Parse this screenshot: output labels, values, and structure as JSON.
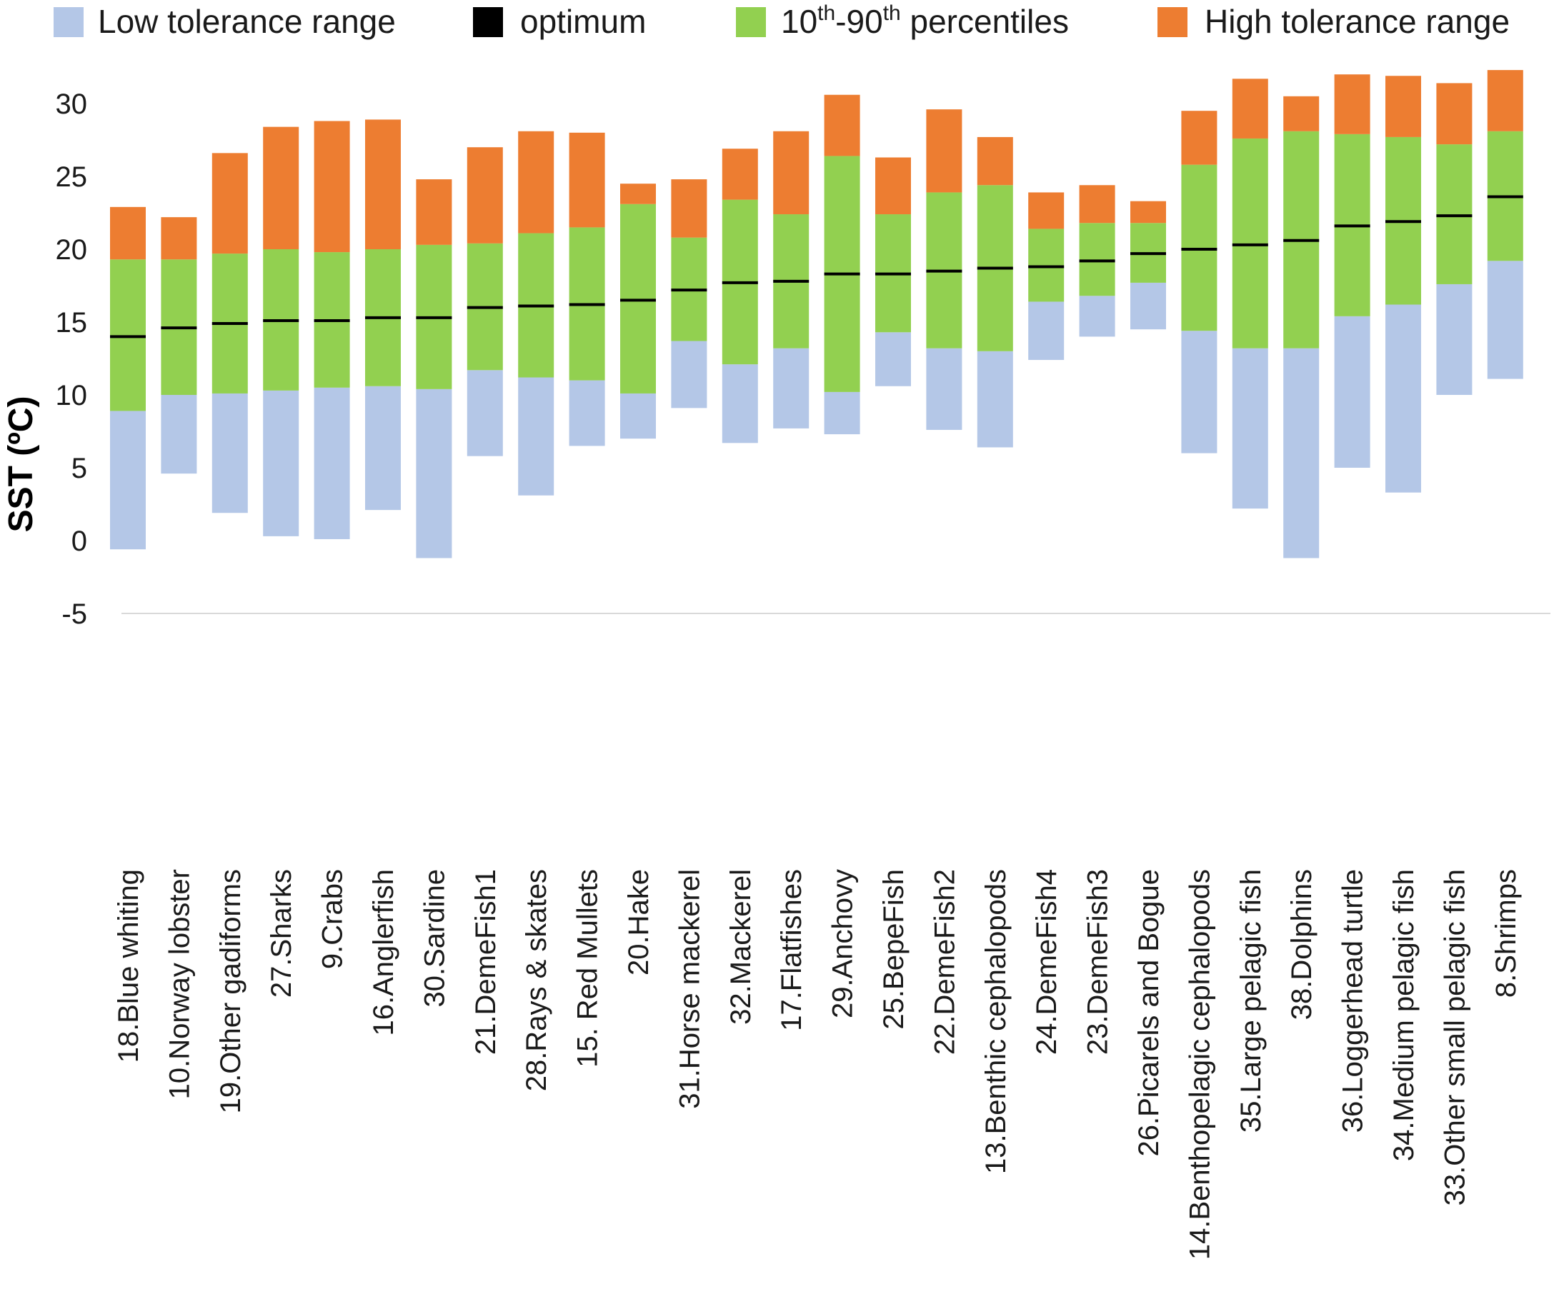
{
  "chart_data": {
    "type": "bar",
    "stacked": true,
    "title": "",
    "ylabel": "SST (ºC)",
    "xlabel": "",
    "ylim": [
      -5,
      32.5
    ],
    "yticks": [
      "-5",
      "0",
      "5",
      "10",
      "15",
      "20",
      "25",
      "30"
    ],
    "ytick_values": [
      -5,
      0,
      5,
      10,
      15,
      20,
      25,
      30
    ],
    "grid": false,
    "legend_position": "top",
    "colors": {
      "low": "#b4c7e7",
      "optimum": "#000000",
      "pct": "#92d050",
      "high": "#ed7d31",
      "axis": "#d9d9d9"
    },
    "legend": [
      {
        "key": "low",
        "label": "Low tolerance range"
      },
      {
        "key": "optimum",
        "label": "optimum"
      },
      {
        "key": "pct",
        "label_parts": [
          "10",
          "th",
          "-90",
          "th",
          " percentiles"
        ]
      },
      {
        "key": "high",
        "label": "High tolerance range"
      }
    ],
    "categories": [
      "18.Blue whiting",
      "10.Norway lobster",
      "19.Other gadiforms",
      "27.Sharks",
      "9.Crabs",
      "16.Anglerfish",
      "30.Sardine",
      "21.DemeFish1",
      "28.Rays & skates",
      "15. Red Mullets",
      "20.Hake",
      "31.Horse mackerel",
      "32.Mackerel",
      "17.Flatfishes",
      "29.Anchovy",
      "25.BepeFish",
      "22.DemeFish2",
      "13.Benthic cephalopods",
      "24.DemeFish4",
      "23.DemeFish3",
      "26.Picarels and Bogue",
      "14.Benthopelagic cephalopods",
      "35.Large pelagic fish",
      "38.Dolphins",
      "36.Loggerhead turtle",
      "34.Medium pelagic fish",
      "33.Other small pelagic fish",
      "8.Shrimps"
    ],
    "low_min": [
      -0.6,
      4.6,
      1.9,
      0.3,
      0.1,
      2.1,
      -1.2,
      5.8,
      3.1,
      6.5,
      7.0,
      9.1,
      6.7,
      7.7,
      7.3,
      10.6,
      7.6,
      6.4,
      12.4,
      14.0,
      14.5,
      6.0,
      2.2,
      -1.2,
      5.0,
      3.3,
      10.0,
      11.1
    ],
    "p10": [
      8.9,
      10.0,
      10.1,
      10.3,
      10.5,
      10.6,
      10.4,
      11.7,
      11.2,
      11.0,
      10.1,
      13.7,
      12.1,
      13.2,
      10.2,
      14.3,
      13.2,
      13.0,
      16.4,
      16.8,
      17.7,
      14.4,
      13.2,
      13.2,
      15.4,
      16.2,
      17.6,
      19.2
    ],
    "p90": [
      19.3,
      19.3,
      19.7,
      20.0,
      19.8,
      20.0,
      20.3,
      20.4,
      21.1,
      21.5,
      23.1,
      20.8,
      23.4,
      22.4,
      26.4,
      22.4,
      23.9,
      24.4,
      21.4,
      21.8,
      21.8,
      25.8,
      27.6,
      28.1,
      27.9,
      27.7,
      27.2,
      28.1
    ],
    "high_max": [
      22.9,
      22.2,
      26.6,
      28.4,
      28.8,
      28.9,
      24.8,
      27.0,
      28.1,
      28.0,
      24.5,
      24.8,
      26.9,
      28.1,
      30.6,
      26.3,
      29.6,
      27.7,
      23.9,
      24.4,
      23.3,
      29.5,
      31.7,
      30.5,
      32.0,
      31.9,
      31.4,
      32.3
    ],
    "optimum": [
      14.0,
      14.6,
      14.9,
      15.1,
      15.1,
      15.3,
      15.3,
      16.0,
      16.1,
      16.2,
      16.5,
      17.2,
      17.7,
      17.8,
      18.3,
      18.3,
      18.5,
      18.7,
      18.8,
      19.2,
      19.7,
      20.0,
      20.3,
      20.6,
      21.6,
      21.9,
      22.3,
      23.6
    ]
  }
}
